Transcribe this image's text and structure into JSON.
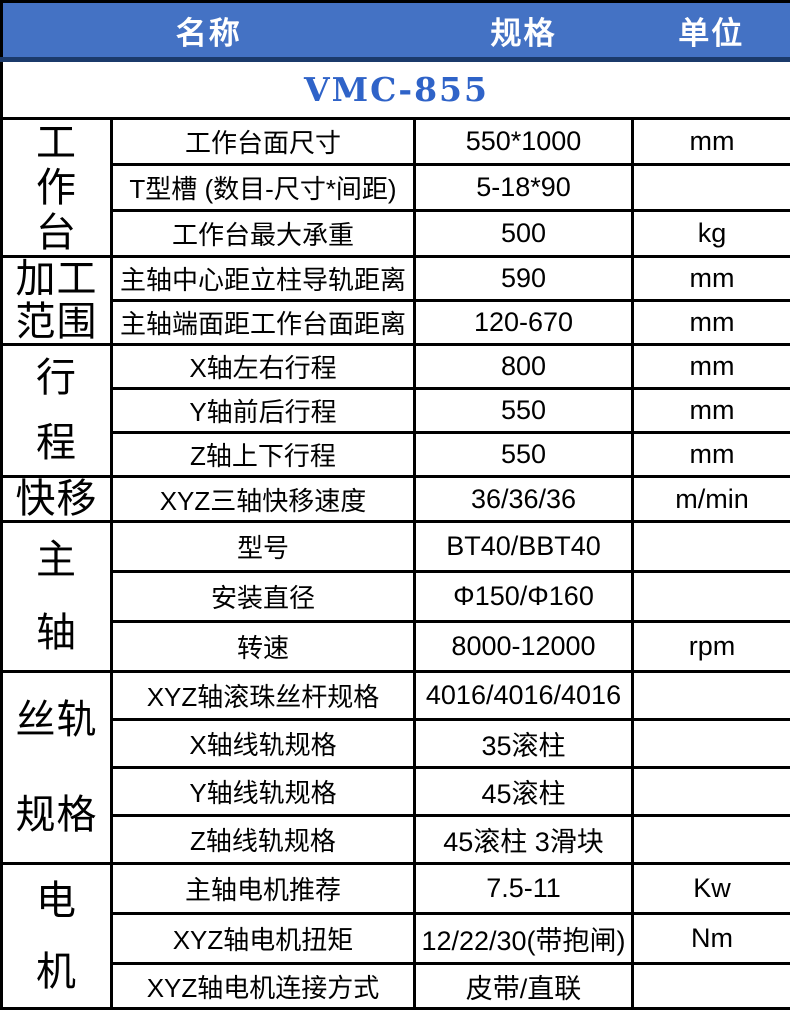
{
  "header": {
    "name_label": "名称",
    "spec_label": "规格",
    "unit_label": "单位"
  },
  "model": "VMC-855",
  "colors": {
    "header_bg": "#4472c4",
    "header_bottom_border": "#1b3a6b",
    "model_text": "#2f63c8",
    "grid": "#000000"
  },
  "groups": [
    {
      "label": "工作台",
      "lines": [
        "工",
        "作",
        "台"
      ],
      "rows": [
        {
          "name": "工作台面尺寸",
          "spec": "550*1000",
          "unit": "mm"
        },
        {
          "name": "T型槽 (数目-尺寸*间距)",
          "spec": "5-18*90",
          "unit": ""
        },
        {
          "name": "工作台最大承重",
          "spec": "500",
          "unit": "kg"
        }
      ]
    },
    {
      "label": "加工范围",
      "lines": [
        "加工",
        "范围"
      ],
      "rows": [
        {
          "name": "主轴中心距立柱导轨距离",
          "spec": "590",
          "unit": "mm"
        },
        {
          "name": "主轴端面距工作台面距离",
          "spec": "120-670",
          "unit": "mm"
        }
      ]
    },
    {
      "label": "行程",
      "lines": [
        "行",
        "程"
      ],
      "rows": [
        {
          "name": "X轴左右行程",
          "spec": "800",
          "unit": "mm"
        },
        {
          "name": "Y轴前后行程",
          "spec": "550",
          "unit": "mm"
        },
        {
          "name": "Z轴上下行程",
          "spec": "550",
          "unit": "mm"
        }
      ]
    },
    {
      "label": "快移",
      "lines": [
        "快移"
      ],
      "rows": [
        {
          "name": "XYZ三轴快移速度",
          "spec": "36/36/36",
          "unit": "m/min"
        }
      ]
    },
    {
      "label": "主轴",
      "lines": [
        "主",
        "轴"
      ],
      "rows": [
        {
          "name": "型号",
          "spec": "BT40/BBT40",
          "unit": ""
        },
        {
          "name": "安装直径",
          "spec": "Φ150/Φ160",
          "unit": ""
        },
        {
          "name": "转速",
          "spec": "8000-12000",
          "unit": "rpm"
        }
      ]
    },
    {
      "label": "丝轨规格",
      "lines": [
        "丝轨",
        "规格"
      ],
      "rows": [
        {
          "name": "XYZ轴滚珠丝杆规格",
          "spec": "4016/4016/4016",
          "unit": ""
        },
        {
          "name": "X轴线轨规格",
          "spec": "35滚柱",
          "unit": ""
        },
        {
          "name": "Y轴线轨规格",
          "spec": "45滚柱",
          "unit": ""
        },
        {
          "name": "Z轴线轨规格",
          "spec": "45滚柱 3滑块",
          "unit": ""
        }
      ]
    },
    {
      "label": "电机",
      "lines": [
        "电",
        "机"
      ],
      "rows": [
        {
          "name": "主轴电机推荐",
          "spec": "7.5-11",
          "unit": "Kw"
        },
        {
          "name": "XYZ轴电机扭矩",
          "spec": "12/22/30(带抱闸)",
          "unit": "Nm"
        },
        {
          "name": "XYZ轴电机连接方式",
          "spec": "皮带/直联",
          "unit": ""
        }
      ]
    }
  ]
}
